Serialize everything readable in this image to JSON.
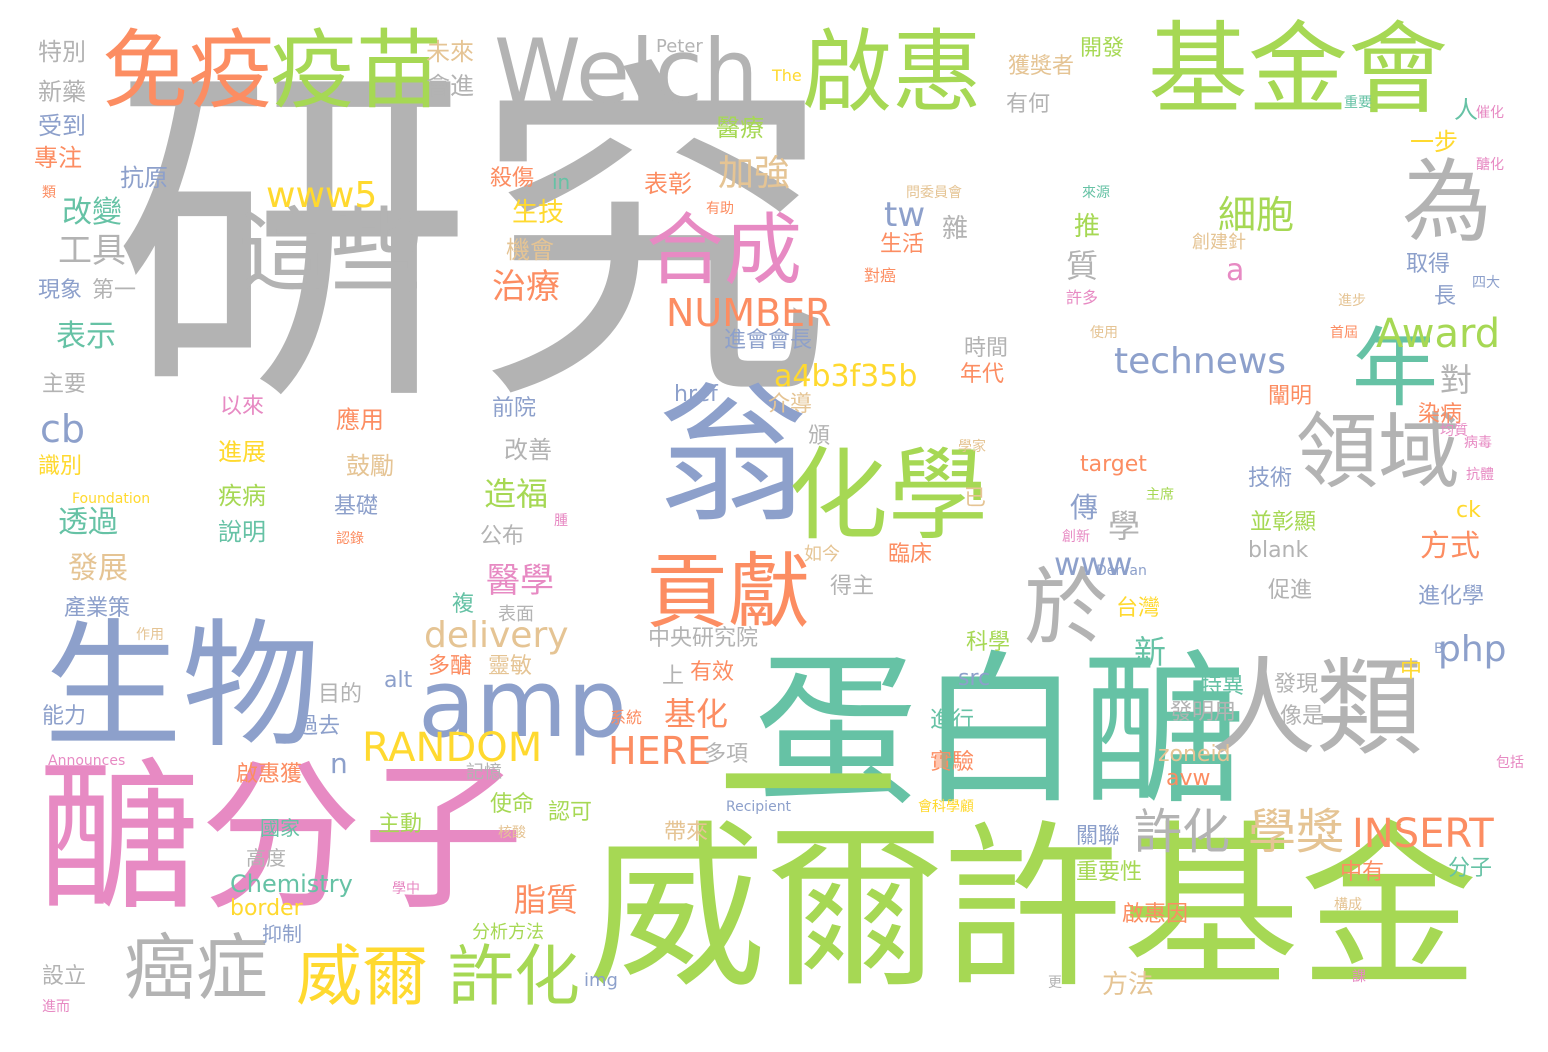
{
  "palette": {
    "gray": "#b3b3b3",
    "pink": "#e78ac3",
    "green": "#a6d854",
    "teal": "#66c2a5",
    "orange": "#fc8d62",
    "blue": "#8da0cb",
    "yellow": "#ffd92f",
    "tan": "#e5c494"
  },
  "words": [
    {
      "text": "研究",
      "color": "gray"
    },
    {
      "text": "醣分子",
      "color": "pink"
    },
    {
      "text": "威爾許基金",
      "color": "green"
    },
    {
      "text": "蛋白醣",
      "color": "teal"
    },
    {
      "text": "一",
      "color": "green"
    },
    {
      "text": "生物",
      "color": "blue"
    },
    {
      "text": "翁",
      "color": "blue"
    },
    {
      "text": "amp",
      "color": "blue"
    },
    {
      "text": "化學",
      "color": "green"
    },
    {
      "text": "基金會",
      "color": "green"
    },
    {
      "text": "Welch",
      "color": "gray"
    },
    {
      "text": "啟惠",
      "color": "green"
    },
    {
      "text": "免疫",
      "color": "orange"
    },
    {
      "text": "疫苗",
      "color": "green"
    },
    {
      "text": "這些",
      "color": "gray"
    },
    {
      "text": "合成",
      "color": "pink"
    },
    {
      "text": "人類",
      "color": "gray"
    },
    {
      "text": "為",
      "color": "gray"
    },
    {
      "text": "年",
      "color": "teal"
    },
    {
      "text": "領域",
      "color": "gray"
    },
    {
      "text": "於",
      "color": "gray"
    },
    {
      "text": "貢獻",
      "color": "orange"
    },
    {
      "text": "癌症",
      "color": "gray"
    },
    {
      "text": "威爾",
      "color": "yellow"
    },
    {
      "text": "許化",
      "color": "green"
    },
    {
      "text": "許化",
      "color": "gray"
    },
    {
      "text": "學獎",
      "color": "tan"
    },
    {
      "text": "INSERT",
      "color": "orange"
    },
    {
      "text": "RANDOM",
      "color": "yellow"
    },
    {
      "text": "HERE",
      "color": "orange"
    },
    {
      "text": "NUMBER",
      "color": "orange"
    },
    {
      "text": "a4b3f35b",
      "color": "yellow"
    },
    {
      "text": "delivery",
      "color": "tan"
    },
    {
      "text": "technews",
      "color": "blue"
    },
    {
      "text": "Award",
      "color": "green"
    },
    {
      "text": "www5",
      "color": "yellow"
    },
    {
      "text": "www",
      "color": "blue"
    },
    {
      "text": "php",
      "color": "blue"
    },
    {
      "text": "tw",
      "color": "blue"
    },
    {
      "text": "cb",
      "color": "blue"
    },
    {
      "text": "a",
      "color": "pink"
    },
    {
      "text": "細胞",
      "color": "green"
    },
    {
      "text": "加強",
      "color": "tan"
    },
    {
      "text": "治療",
      "color": "orange"
    },
    {
      "text": "醫學",
      "color": "pink"
    },
    {
      "text": "造福",
      "color": "green"
    },
    {
      "text": "脂質",
      "color": "orange"
    },
    {
      "text": "基化",
      "color": "orange"
    },
    {
      "text": "工具",
      "color": "gray"
    },
    {
      "text": "改變",
      "color": "teal"
    },
    {
      "text": "表示",
      "color": "teal"
    },
    {
      "text": "透過",
      "color": "teal"
    },
    {
      "text": "發展",
      "color": "tan"
    },
    {
      "text": "方式",
      "color": "orange"
    },
    {
      "text": "新",
      "color": "teal"
    },
    {
      "text": "學",
      "color": "gray"
    },
    {
      "text": "質",
      "color": "gray"
    },
    {
      "text": "對",
      "color": "gray"
    },
    {
      "text": "傳",
      "color": "blue"
    },
    {
      "text": "n",
      "color": "blue"
    },
    {
      "text": "Chemistry",
      "color": "teal"
    },
    {
      "text": "border",
      "color": "yellow"
    },
    {
      "text": "生技",
      "color": "yellow"
    },
    {
      "text": "機會",
      "color": "tan"
    },
    {
      "text": "表彰",
      "color": "orange"
    },
    {
      "text": "醫療",
      "color": "green"
    },
    {
      "text": "殺傷",
      "color": "orange"
    },
    {
      "text": "in",
      "color": "teal"
    },
    {
      "text": "抗原",
      "color": "blue"
    },
    {
      "text": "專注",
      "color": "orange"
    },
    {
      "text": "受到",
      "color": "blue"
    },
    {
      "text": "新藥",
      "color": "gray"
    },
    {
      "text": "特別",
      "color": "gray"
    },
    {
      "text": "未來",
      "color": "tan"
    },
    {
      "text": "會進",
      "color": "gray"
    },
    {
      "text": "Peter",
      "color": "gray"
    },
    {
      "text": "The",
      "color": "yellow"
    },
    {
      "text": "獲獎者",
      "color": "tan"
    },
    {
      "text": "有何",
      "color": "gray"
    },
    {
      "text": "開發",
      "color": "green"
    },
    {
      "text": "重要",
      "color": "teal"
    },
    {
      "text": "催化",
      "color": "pink"
    },
    {
      "text": "醣化",
      "color": "pink"
    },
    {
      "text": "一步",
      "color": "yellow"
    },
    {
      "text": "人",
      "color": "teal"
    },
    {
      "text": "現象",
      "color": "blue"
    },
    {
      "text": "第一",
      "color": "gray"
    },
    {
      "text": "主要",
      "color": "gray"
    },
    {
      "text": "以來",
      "color": "pink"
    },
    {
      "text": "應用",
      "color": "orange"
    },
    {
      "text": "進展",
      "color": "yellow"
    },
    {
      "text": "疾病",
      "color": "green"
    },
    {
      "text": "說明",
      "color": "teal"
    },
    {
      "text": "識別",
      "color": "yellow"
    },
    {
      "text": "Foundation",
      "color": "yellow"
    },
    {
      "text": "鼓勵",
      "color": "tan"
    },
    {
      "text": "基礎",
      "color": "blue"
    },
    {
      "text": "公布",
      "color": "gray"
    },
    {
      "text": "改善",
      "color": "gray"
    },
    {
      "text": "前院",
      "color": "blue"
    },
    {
      "text": "href",
      "color": "blue"
    },
    {
      "text": "進會會長",
      "color": "blue"
    },
    {
      "text": "時間",
      "color": "gray"
    },
    {
      "text": "年代",
      "color": "orange"
    },
    {
      "text": "介導",
      "color": "tan"
    },
    {
      "text": "頒",
      "color": "gray"
    },
    {
      "text": "target",
      "color": "orange"
    },
    {
      "text": "技術",
      "color": "blue"
    },
    {
      "text": "並彰顯",
      "color": "green"
    },
    {
      "text": "blank",
      "color": "gray"
    },
    {
      "text": "促進",
      "color": "gray"
    },
    {
      "text": "闡明",
      "color": "orange"
    },
    {
      "text": "染病",
      "color": "orange"
    },
    {
      "text": "病毒",
      "color": "pink"
    },
    {
      "text": "抗體",
      "color": "pink"
    },
    {
      "text": "均質",
      "color": "pink"
    },
    {
      "text": "ck",
      "color": "yellow"
    },
    {
      "text": "進化學",
      "color": "blue"
    },
    {
      "text": "取得",
      "color": "blue"
    },
    {
      "text": "長",
      "color": "blue"
    },
    {
      "text": "四大",
      "color": "blue"
    },
    {
      "text": "進步",
      "color": "tan"
    },
    {
      "text": "首屆",
      "color": "orange"
    },
    {
      "text": "使用",
      "color": "tan"
    },
    {
      "text": "推",
      "color": "green"
    },
    {
      "text": "雜",
      "color": "gray"
    },
    {
      "text": "生活",
      "color": "orange"
    },
    {
      "text": "對癌",
      "color": "orange"
    },
    {
      "text": "許多",
      "color": "pink"
    },
    {
      "text": "來源",
      "color": "teal"
    },
    {
      "text": "創建針",
      "color": "tan"
    },
    {
      "text": "問委員會",
      "color": "tan"
    },
    {
      "text": "有助",
      "color": "orange"
    },
    {
      "text": "主席",
      "color": "green"
    },
    {
      "text": "學家",
      "color": "tan"
    },
    {
      "text": "已",
      "color": "tan"
    },
    {
      "text": "創新",
      "color": "pink"
    },
    {
      "text": "Dervan",
      "color": "blue"
    },
    {
      "text": "臨床",
      "color": "orange"
    },
    {
      "text": "得主",
      "color": "gray"
    },
    {
      "text": "如今",
      "color": "tan"
    },
    {
      "text": "台灣",
      "color": "yellow"
    },
    {
      "text": "科學",
      "color": "green"
    },
    {
      "text": "中央研究院",
      "color": "gray"
    },
    {
      "text": "複",
      "color": "teal"
    },
    {
      "text": "表面",
      "color": "gray"
    },
    {
      "text": "多醣",
      "color": "orange"
    },
    {
      "text": "靈敏",
      "color": "tan"
    },
    {
      "text": "有效",
      "color": "orange"
    },
    {
      "text": "上",
      "color": "gray"
    },
    {
      "text": "alt",
      "color": "blue"
    },
    {
      "text": "src",
      "color": "blue"
    },
    {
      "text": "目的",
      "color": "gray"
    },
    {
      "text": "過去",
      "color": "blue"
    },
    {
      "text": "系統",
      "color": "orange"
    },
    {
      "text": "進行",
      "color": "teal"
    },
    {
      "text": "實驗",
      "color": "orange"
    },
    {
      "text": "特異",
      "color": "teal"
    },
    {
      "text": "發明用",
      "color": "gray"
    },
    {
      "text": "發現",
      "color": "gray"
    },
    {
      "text": "像是",
      "color": "gray"
    },
    {
      "text": "zoneid",
      "color": "tan"
    },
    {
      "text": "avw",
      "color": "orange"
    },
    {
      "text": "多項",
      "color": "gray"
    },
    {
      "text": "記憶",
      "color": "gray"
    },
    {
      "text": "啟惠獲",
      "color": "orange"
    },
    {
      "text": "使命",
      "color": "green"
    },
    {
      "text": "認可",
      "color": "green"
    },
    {
      "text": "帶來",
      "color": "tan"
    },
    {
      "text": "關聯",
      "color": "blue"
    },
    {
      "text": "重要性",
      "color": "green"
    },
    {
      "text": "中有",
      "color": "orange"
    },
    {
      "text": "分子",
      "color": "teal"
    },
    {
      "text": "啟惠因",
      "color": "orange"
    },
    {
      "text": "方法",
      "color": "tan"
    },
    {
      "text": "分析方法",
      "color": "green"
    },
    {
      "text": "img",
      "color": "blue"
    },
    {
      "text": "主動",
      "color": "green"
    },
    {
      "text": "國家",
      "color": "teal"
    },
    {
      "text": "高度",
      "color": "gray"
    },
    {
      "text": "抑制",
      "color": "blue"
    },
    {
      "text": "設立",
      "color": "gray"
    },
    {
      "text": "進而",
      "color": "pink"
    },
    {
      "text": "產業策",
      "color": "blue"
    },
    {
      "text": "作用",
      "color": "tan"
    },
    {
      "text": "能力",
      "color": "blue"
    },
    {
      "text": "Announces",
      "color": "pink"
    },
    {
      "text": "Recipient",
      "color": "blue"
    },
    {
      "text": "核酸",
      "color": "tan"
    },
    {
      "text": "學中",
      "color": "pink"
    },
    {
      "text": "構成",
      "color": "tan"
    },
    {
      "text": "課",
      "color": "pink"
    },
    {
      "text": "更",
      "color": "gray"
    },
    {
      "text": "包括",
      "color": "pink"
    },
    {
      "text": "中",
      "color": "yellow"
    },
    {
      "text": "B",
      "color": "blue"
    },
    {
      "text": "會科學顧",
      "color": "yellow"
    },
    {
      "text": "認錄",
      "color": "orange"
    },
    {
      "text": "類",
      "color": "orange"
    },
    {
      "text": "腫",
      "color": "pink"
    }
  ]
}
